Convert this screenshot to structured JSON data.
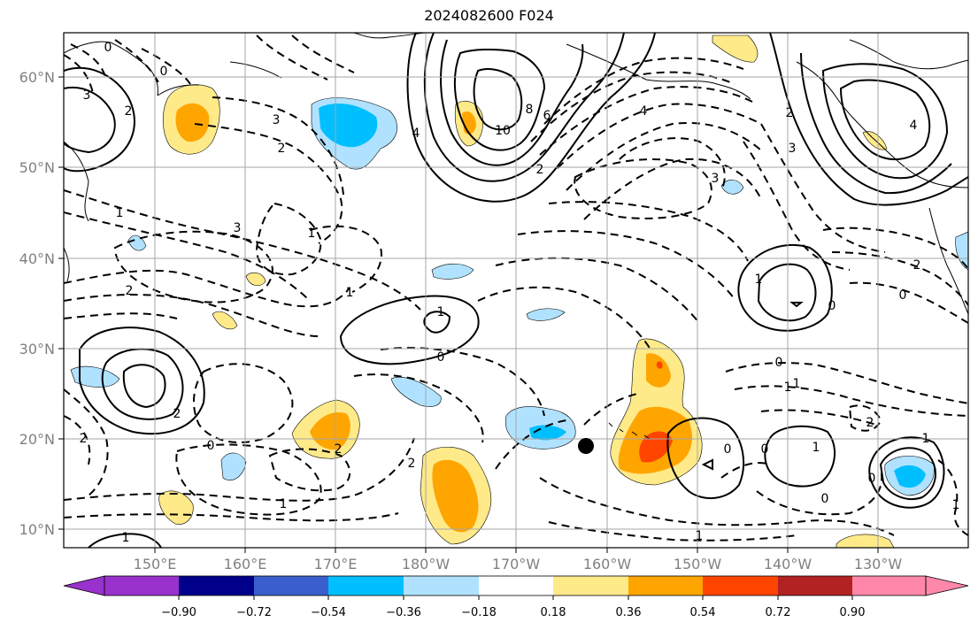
{
  "title": "2024082600 F024",
  "map": {
    "lon_labels": [
      "150°E",
      "160°E",
      "170°E",
      "180°W",
      "170°W",
      "160°W",
      "150°W",
      "140°W",
      "130°W"
    ],
    "lat_labels": [
      "60°N",
      "50°N",
      "40°N",
      "30°N",
      "20°N",
      "10°N"
    ],
    "contour_labels": [
      "0",
      "3",
      "2",
      "0",
      "1",
      "2",
      "3",
      "2",
      "3",
      "2",
      "1",
      "1",
      "1",
      "0",
      "8",
      "6",
      "4",
      "10",
      "2",
      "4",
      "3",
      "2",
      "3",
      "4",
      "1",
      "0",
      "0",
      "0",
      "1",
      "2",
      "0",
      "0",
      "1",
      "1",
      "2",
      "1",
      "0",
      "0",
      "1",
      "2",
      "0",
      "2",
      "2",
      "1",
      "1",
      "1"
    ],
    "marker": "storm-center-dot",
    "colors": {
      "grid": "#a6a6a6",
      "coast": "#000000",
      "contour": "#000000",
      "axis_label": "#808080"
    }
  },
  "colorbar": {
    "tick_labels": [
      "−0.90",
      "−0.72",
      "−0.54",
      "−0.36",
      "−0.18",
      "0.18",
      "0.36",
      "0.54",
      "0.72",
      "0.90"
    ],
    "colors": [
      "#9932cc",
      "#00008b",
      "#3a5fcd",
      "#00bfff",
      "#b0e2ff",
      "#ffffff",
      "#ffea8a",
      "#ffa500",
      "#ff4500",
      "#b22222",
      "#ff88aa"
    ]
  }
}
